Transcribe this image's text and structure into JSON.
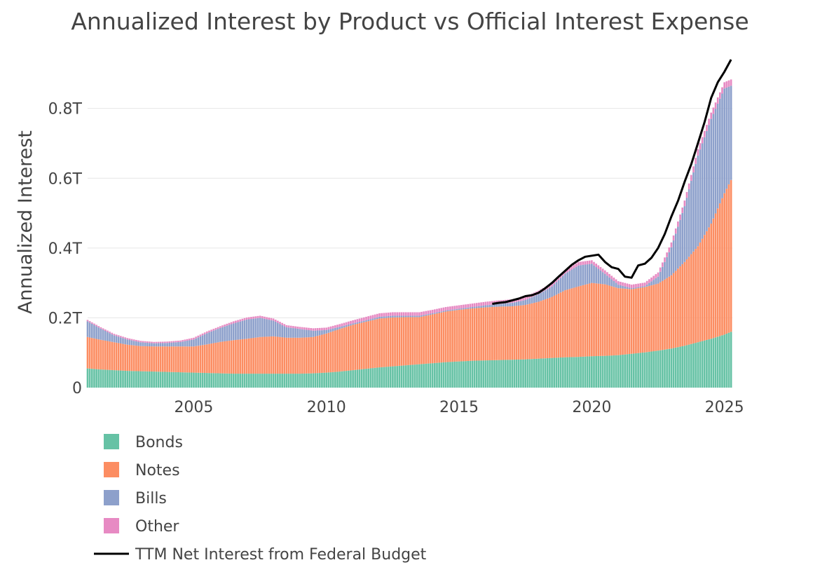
{
  "chart_data": {
    "type": "bar",
    "stacked": true,
    "title": "Annualized Interest by Product vs Official Interest Expense",
    "xlabel": "",
    "ylabel": "Annualized Interest",
    "xlim": [
      2001.0,
      2025.3
    ],
    "ylim": [
      0,
      0.96
    ],
    "y_ticks": [
      {
        "value": 0,
        "label": "0"
      },
      {
        "value": 0.2,
        "label": "0.2T"
      },
      {
        "value": 0.4,
        "label": "0.4T"
      },
      {
        "value": 0.6,
        "label": "0.6T"
      },
      {
        "value": 0.8,
        "label": "0.8T"
      }
    ],
    "x_ticks": [
      {
        "value": 2005,
        "label": "2005"
      },
      {
        "value": 2010,
        "label": "2010"
      },
      {
        "value": 2015,
        "label": "2015"
      },
      {
        "value": 2020,
        "label": "2020"
      },
      {
        "value": 2025,
        "label": "2025"
      }
    ],
    "grid": true,
    "legend_position": "bottom-left",
    "x": [
      2001.0,
      2001.5,
      2002.0,
      2002.5,
      2003.0,
      2003.5,
      2004.0,
      2004.5,
      2005.0,
      2005.5,
      2006.0,
      2006.5,
      2007.0,
      2007.5,
      2008.0,
      2008.5,
      2009.0,
      2009.5,
      2010.0,
      2010.5,
      2011.0,
      2011.5,
      2012.0,
      2012.5,
      2013.0,
      2013.5,
      2014.0,
      2014.5,
      2015.0,
      2015.5,
      2016.0,
      2016.5,
      2017.0,
      2017.5,
      2018.0,
      2018.5,
      2019.0,
      2019.5,
      2020.0,
      2020.5,
      2021.0,
      2021.5,
      2022.0,
      2022.5,
      2023.0,
      2023.5,
      2024.0,
      2024.5,
      2025.0,
      2025.25
    ],
    "series": [
      {
        "name": "Bonds",
        "color": "#66c2a5",
        "values": [
          0.055,
          0.052,
          0.05,
          0.048,
          0.047,
          0.046,
          0.045,
          0.044,
          0.043,
          0.042,
          0.041,
          0.04,
          0.04,
          0.04,
          0.04,
          0.04,
          0.04,
          0.041,
          0.043,
          0.046,
          0.05,
          0.054,
          0.058,
          0.061,
          0.064,
          0.067,
          0.07,
          0.073,
          0.075,
          0.077,
          0.078,
          0.079,
          0.08,
          0.081,
          0.083,
          0.085,
          0.087,
          0.088,
          0.09,
          0.091,
          0.093,
          0.097,
          0.101,
          0.106,
          0.112,
          0.12,
          0.13,
          0.14,
          0.152,
          0.16
        ]
      },
      {
        "name": "Notes",
        "color": "#fc8d62",
        "values": [
          0.09,
          0.085,
          0.08,
          0.075,
          0.072,
          0.072,
          0.073,
          0.074,
          0.075,
          0.082,
          0.09,
          0.096,
          0.1,
          0.105,
          0.107,
          0.103,
          0.103,
          0.104,
          0.112,
          0.122,
          0.13,
          0.135,
          0.14,
          0.14,
          0.138,
          0.135,
          0.14,
          0.145,
          0.148,
          0.15,
          0.152,
          0.153,
          0.153,
          0.156,
          0.163,
          0.175,
          0.192,
          0.202,
          0.21,
          0.205,
          0.192,
          0.185,
          0.187,
          0.192,
          0.21,
          0.24,
          0.275,
          0.33,
          0.405,
          0.435
        ]
      },
      {
        "name": "Bills",
        "color": "#8da0cb",
        "values": [
          0.045,
          0.032,
          0.02,
          0.015,
          0.011,
          0.009,
          0.01,
          0.013,
          0.02,
          0.032,
          0.04,
          0.048,
          0.055,
          0.055,
          0.045,
          0.03,
          0.025,
          0.018,
          0.01,
          0.006,
          0.004,
          0.004,
          0.005,
          0.005,
          0.004,
          0.004,
          0.003,
          0.003,
          0.003,
          0.004,
          0.006,
          0.008,
          0.01,
          0.014,
          0.022,
          0.03,
          0.048,
          0.06,
          0.055,
          0.03,
          0.01,
          0.003,
          0.003,
          0.02,
          0.08,
          0.16,
          0.26,
          0.3,
          0.3,
          0.27
        ]
      },
      {
        "name": "Other",
        "color": "#e78ac3",
        "values": [
          0.004,
          0.004,
          0.004,
          0.004,
          0.004,
          0.004,
          0.004,
          0.004,
          0.005,
          0.005,
          0.005,
          0.006,
          0.006,
          0.006,
          0.006,
          0.006,
          0.006,
          0.007,
          0.007,
          0.008,
          0.009,
          0.01,
          0.01,
          0.01,
          0.01,
          0.01,
          0.01,
          0.01,
          0.01,
          0.01,
          0.01,
          0.01,
          0.01,
          0.01,
          0.01,
          0.01,
          0.01,
          0.01,
          0.01,
          0.01,
          0.01,
          0.01,
          0.01,
          0.012,
          0.014,
          0.016,
          0.018,
          0.018,
          0.018,
          0.018
        ]
      }
    ],
    "line": {
      "name": "TTM Net Interest from Federal Budget",
      "color": "#000000",
      "x": [
        2016.25,
        2016.5,
        2016.75,
        2017.0,
        2017.25,
        2017.5,
        2017.75,
        2018.0,
        2018.25,
        2018.5,
        2018.75,
        2019.0,
        2019.25,
        2019.5,
        2019.75,
        2020.0,
        2020.25,
        2020.5,
        2020.75,
        2021.0,
        2021.25,
        2021.5,
        2021.75,
        2022.0,
        2022.25,
        2022.5,
        2022.75,
        2023.0,
        2023.25,
        2023.5,
        2023.75,
        2024.0,
        2024.25,
        2024.5,
        2024.75,
        2025.0,
        2025.25
      ],
      "y": [
        0.24,
        0.243,
        0.245,
        0.25,
        0.255,
        0.262,
        0.265,
        0.272,
        0.285,
        0.3,
        0.318,
        0.335,
        0.352,
        0.365,
        0.375,
        0.378,
        0.381,
        0.36,
        0.345,
        0.34,
        0.318,
        0.315,
        0.35,
        0.355,
        0.372,
        0.4,
        0.44,
        0.49,
        0.535,
        0.59,
        0.64,
        0.7,
        0.76,
        0.83,
        0.875,
        0.905,
        0.94
      ]
    }
  }
}
